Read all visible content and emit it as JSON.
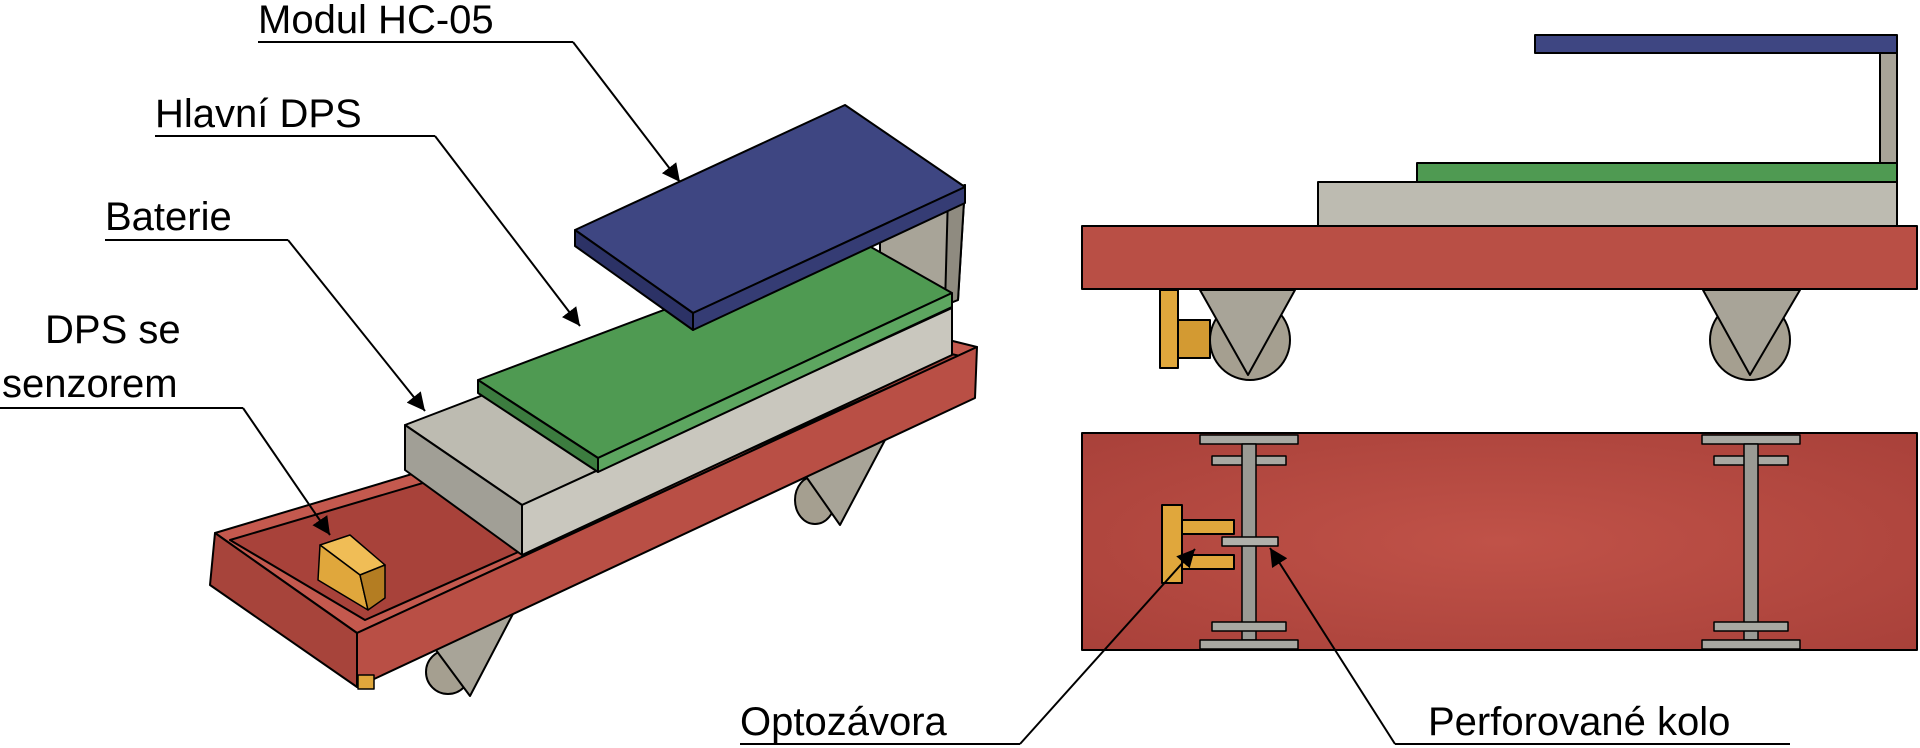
{
  "labels": {
    "hc05": "Modul HC-05",
    "main_pcb": "Hlavní DPS",
    "battery": "Baterie",
    "sensor_pcb_line1": "DPS se",
    "sensor_pcb_line2": "senzorem",
    "optocoupler": "Optozávora",
    "perforated_wheel": "Perforované kolo"
  },
  "colors": {
    "chassis": "#b94f45",
    "chassis_dark": "#93362e",
    "chassis_top": "#c4594e",
    "hc05": "#3e4682",
    "hc05_side": "#2c3266",
    "main_pcb": "#4f9a52",
    "main_pcb_side": "#3c7c3f",
    "battery": "#bdbbb1",
    "battery_shade": "#a19f96",
    "support": "#a8a498",
    "wheel": "#a59f90",
    "sensor": "#e0a73c",
    "sensor_dark": "#b47d22",
    "axle": "#9a9a94"
  }
}
